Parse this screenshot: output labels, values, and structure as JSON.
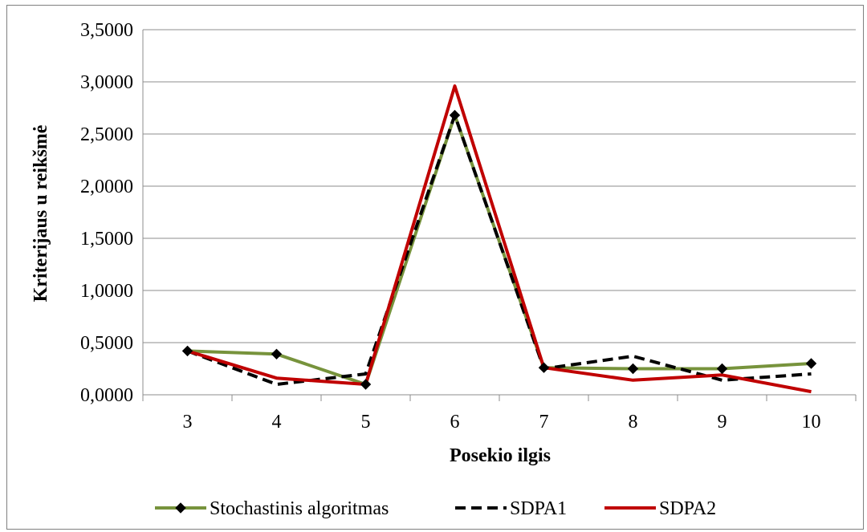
{
  "chart_data": {
    "type": "line",
    "title": "",
    "xlabel": "Posekio ilgis",
    "ylabel": "Kriterijaus u reikšmė",
    "categories": [
      "3",
      "4",
      "5",
      "6",
      "7",
      "8",
      "9",
      "10"
    ],
    "ylim": [
      0,
      3.5
    ],
    "yticks": [
      0,
      0.5,
      1,
      1.5,
      2,
      2.5,
      3,
      3.5
    ],
    "ytick_labels": [
      "0,0000",
      "0,5000",
      "1,0000",
      "1,5000",
      "2,0000",
      "2,5000",
      "3,0000",
      "3,5000"
    ],
    "grid": "horizontal",
    "legend_position": "bottom",
    "series": [
      {
        "name": "Stochastinis algoritmas",
        "values": [
          0.42,
          0.39,
          0.1,
          2.68,
          0.26,
          0.25,
          0.25,
          0.3
        ],
        "color": "#77933c",
        "style": "solid",
        "marker": "diamond"
      },
      {
        "name": "SDPA1",
        "values": [
          0.42,
          0.1,
          0.2,
          2.68,
          0.25,
          0.37,
          0.14,
          0.2
        ],
        "color": "#000000",
        "style": "dashed",
        "marker": "none"
      },
      {
        "name": "SDPA2",
        "values": [
          0.42,
          0.16,
          0.1,
          2.96,
          0.26,
          0.14,
          0.19,
          0.03
        ],
        "color": "#c00000",
        "style": "solid",
        "marker": "none"
      }
    ]
  }
}
